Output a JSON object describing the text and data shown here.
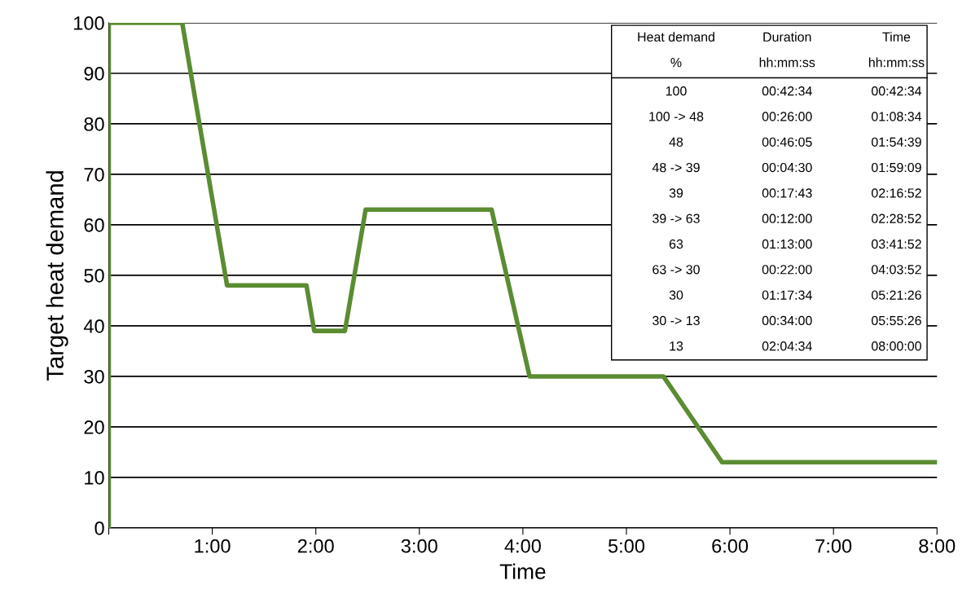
{
  "chart_data": {
    "type": "line",
    "xlabel": "Time",
    "ylabel": "Target heat demand",
    "x": [
      0,
      0,
      0.7094,
      1.1428,
      1.9097,
      1.9847,
      2.2811,
      2.4811,
      3.6978,
      4.0644,
      5.3572,
      5.9239,
      8
    ],
    "series": [
      {
        "color": "#5b8c32",
        "values": [
          0,
          100,
          100,
          48,
          48,
          39,
          39,
          63,
          63,
          30,
          30,
          13,
          13
        ]
      }
    ],
    "xlim": [
      0,
      8
    ],
    "xticks": [
      {
        "value": 0,
        "label": null
      },
      {
        "value": 1,
        "label": "1:00"
      },
      {
        "value": 2,
        "label": "2:00"
      },
      {
        "value": 3,
        "label": "3:00"
      },
      {
        "value": 4,
        "label": "4:00"
      },
      {
        "value": 5,
        "label": "5:00"
      },
      {
        "value": 6,
        "label": "6:00"
      },
      {
        "value": 7,
        "label": "7:00"
      },
      {
        "value": 8,
        "label": "8:00"
      }
    ],
    "ylim": [
      0,
      100
    ],
    "yticks": [
      0,
      10,
      20,
      30,
      40,
      50,
      60,
      70,
      80,
      90,
      100
    ],
    "grid": "y",
    "marker": "none",
    "line_style": "solid",
    "legend": false,
    "annotations": [
      "Heat demand",
      "Duration",
      "Time",
      "%",
      "hh:mm:ss",
      "hh:mm:ss",
      "100",
      "00:42:34",
      "00:42:34",
      "100 -> 48",
      "00:26:00",
      "01:08:34",
      "48",
      "00:46:05",
      "01:54:39",
      "48 -> 39",
      "00:04:30",
      "01:59:09",
      "39",
      "00:17:43",
      "02:16:52",
      "39 -> 63",
      "00:12:00",
      "02:28:52",
      "63",
      "01:13:00",
      "03:41:52",
      "63 -> 30",
      "00:22:00",
      "04:03:52",
      "30",
      "01:17:34",
      "05:21:26",
      "30 -> 13",
      "00:34:00",
      "05:55:26",
      "13",
      "02:04:34",
      "08:00:00"
    ]
  }
}
